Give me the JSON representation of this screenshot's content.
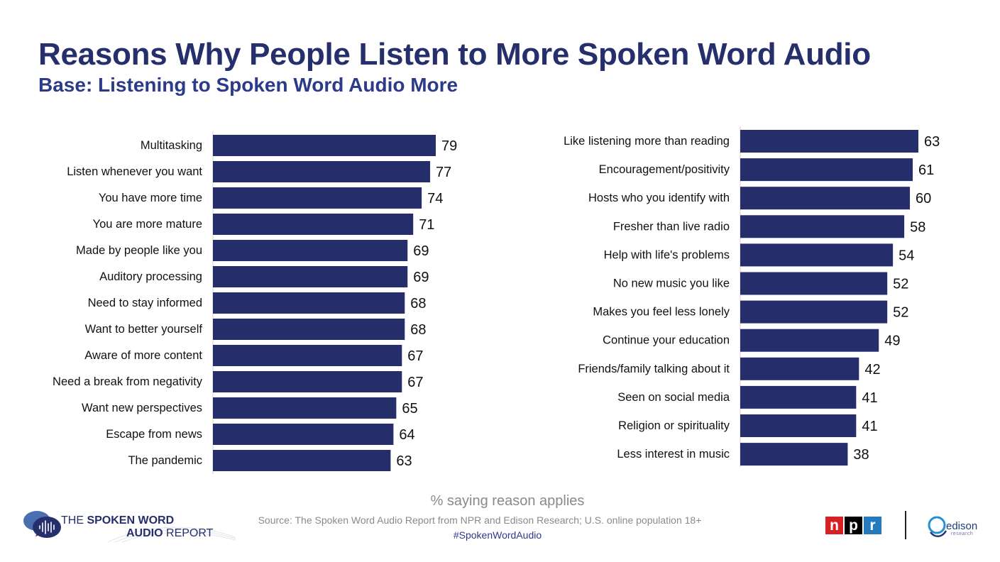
{
  "header": {
    "title": "Reasons Why People Listen to More Spoken Word Audio",
    "subtitle": "Base: Listening to Spoken Word Audio More"
  },
  "chart_data": [
    {
      "type": "bar",
      "orientation": "horizontal",
      "categories": [
        "Multitasking",
        "Listen whenever you want",
        "You have more time",
        "You are more mature",
        "Made by people like you",
        "Auditory processing",
        "Need to stay informed",
        "Want to better yourself",
        "Aware of more content",
        "Need a break from negativity",
        "Want new perspectives",
        "Escape from news",
        "The pandemic"
      ],
      "values": [
        79,
        77,
        74,
        71,
        69,
        69,
        68,
        68,
        67,
        67,
        65,
        64,
        63
      ],
      "bar_color": "#262d6b",
      "data_labels": true,
      "grid": false
    },
    {
      "type": "bar",
      "orientation": "horizontal",
      "categories": [
        "Like listening more than reading",
        "Encouragement/positivity",
        "Hosts who you identify with",
        "Fresher than live radio",
        "Help with life's problems",
        "No new music you like",
        "Makes you feel less lonely",
        "Continue your education",
        "Friends/family talking about it",
        "Seen on social media",
        "Religion or spirituality",
        "Less interest in music"
      ],
      "values": [
        63,
        61,
        60,
        58,
        54,
        52,
        52,
        49,
        42,
        41,
        41,
        38
      ],
      "bar_color": "#262d6b",
      "data_labels": true,
      "grid": false
    }
  ],
  "axis_note": "% saying reason applies",
  "footer": {
    "source": "Source: The Spoken Word Audio Report from NPR and Edison Research; U.S. online population 18+",
    "hashtag": "#SpokenWordAudio"
  },
  "brand": {
    "line1_prefix": "THE ",
    "line1_bold": "SPOKEN WORD",
    "line2_bold": "AUDIO",
    "line2_suffix": " REPORT"
  },
  "logos": {
    "npr_letters": [
      "n",
      "p",
      "r"
    ],
    "npr_colors": [
      "#d62021",
      "#000000",
      "#237bbd"
    ],
    "edison_name": "edison",
    "edison_sub": "research"
  }
}
